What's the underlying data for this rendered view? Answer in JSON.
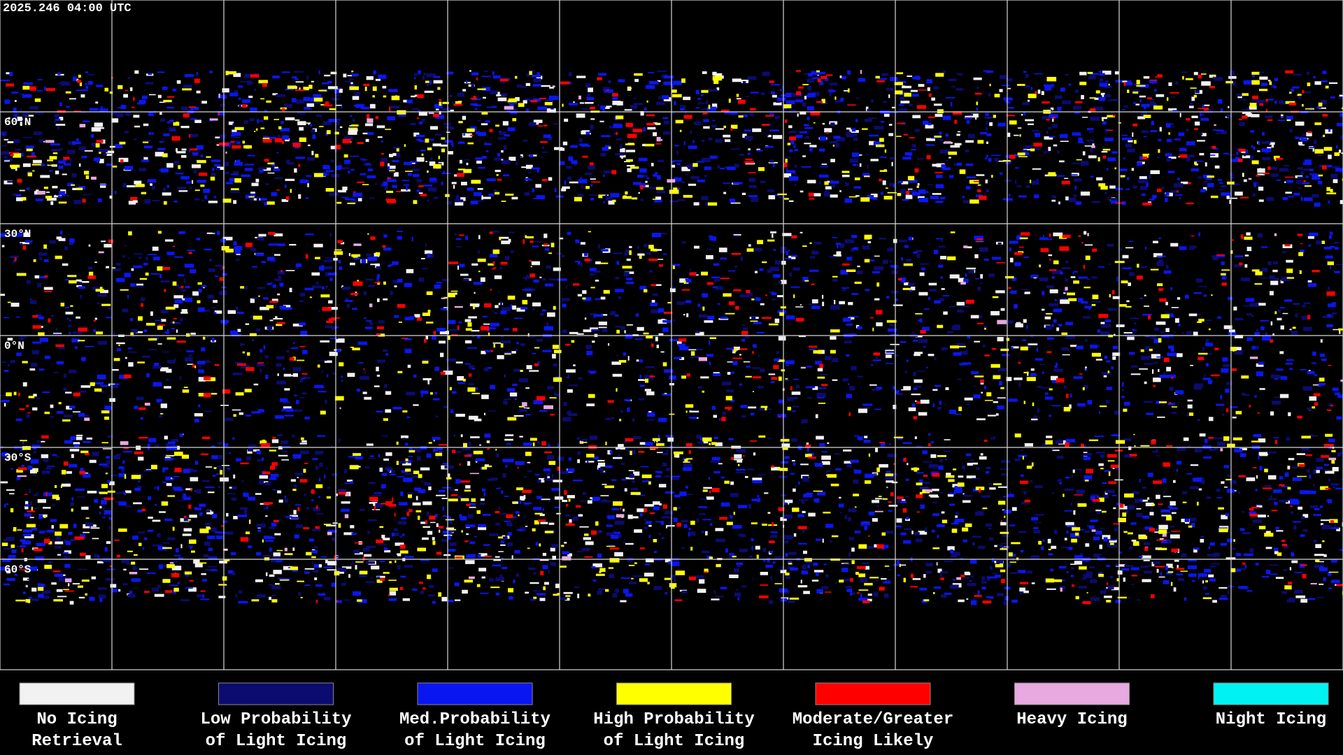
{
  "header": {
    "timestamp": "2025.246 04:00 UTC"
  },
  "map": {
    "latitude_labels": [
      "60°N",
      "30°N",
      "0°N",
      "30°S",
      "60°S"
    ]
  },
  "legend": {
    "items": [
      {
        "label_lines": [
          "No Icing",
          "Retrieval"
        ],
        "color": "#f2f2f2"
      },
      {
        "label_lines": [
          "Low Probability",
          "of Light Icing"
        ],
        "color": "#0b0b70"
      },
      {
        "label_lines": [
          "Med.Probability",
          "of Light Icing"
        ],
        "color": "#0a16f2"
      },
      {
        "label_lines": [
          "High Probability",
          "of Light Icing"
        ],
        "color": "#ffff00"
      },
      {
        "label_lines": [
          "Moderate/Greater",
          "Icing Likely"
        ],
        "color": "#ff0000"
      },
      {
        "label_lines": [
          "Heavy Icing"
        ],
        "color": "#e8a8e0"
      },
      {
        "label_lines": [
          "Night Icing"
        ],
        "color": "#00f2f2"
      }
    ]
  }
}
